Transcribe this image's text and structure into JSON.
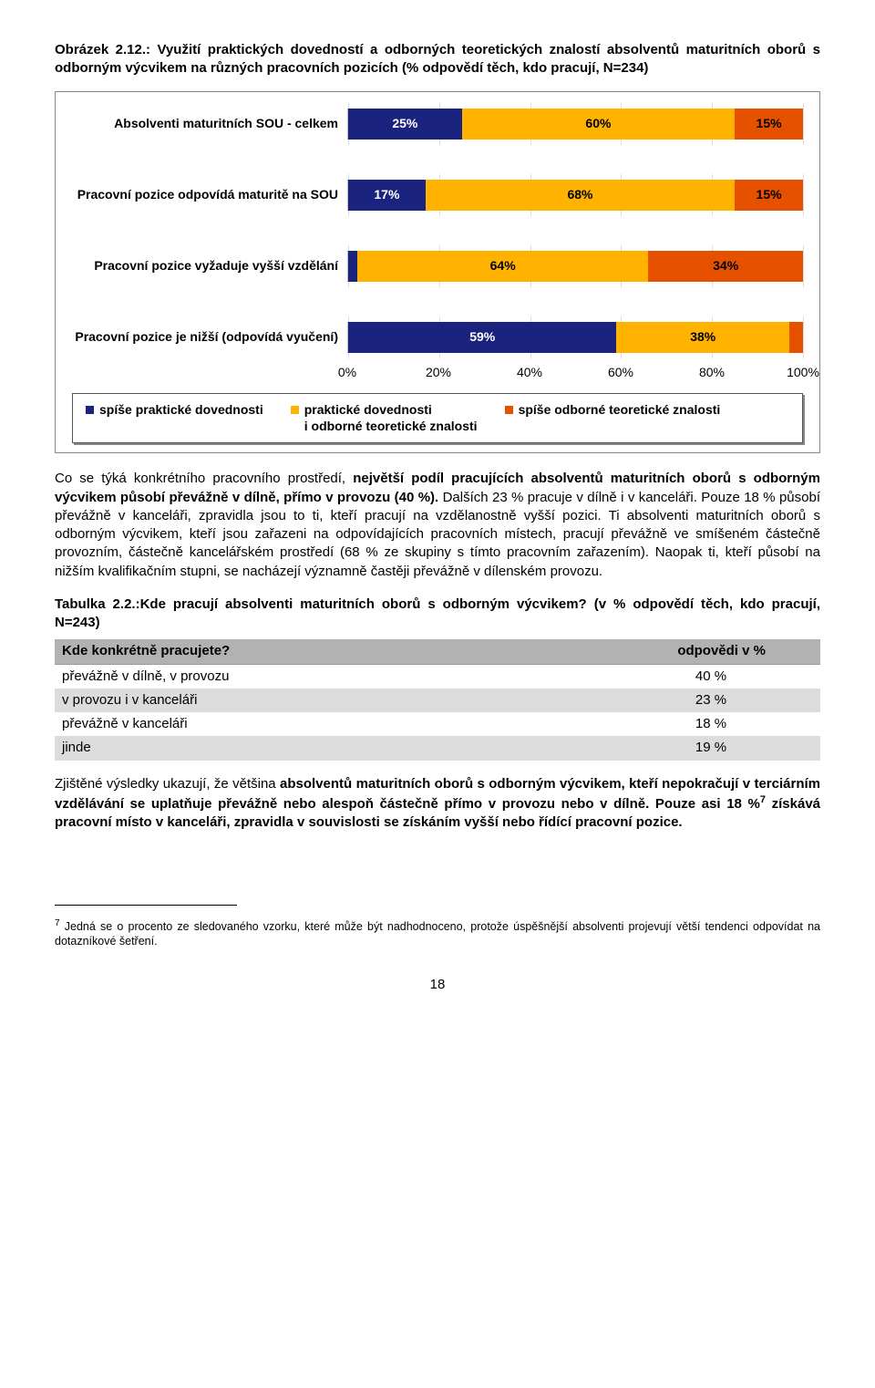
{
  "figure": {
    "label": "Obrázek 2.12.",
    "caption": ": Využití praktických dovedností a odborných teoretických znalostí absolventů maturitních oborů s odborným výcvikem na různých pracovních pozicích (% odpovědí těch, kdo pracují, N=234)"
  },
  "chart": {
    "type": "stacked-bar-horizontal",
    "xlim": [
      0,
      100
    ],
    "xticks": [
      "0%",
      "20%",
      "40%",
      "60%",
      "80%",
      "100%"
    ],
    "xtick_positions_pct": [
      0,
      20,
      40,
      60,
      80,
      100
    ],
    "grid_color": "#dcdcdc",
    "plot_border_color": "#bbbbbb",
    "categories": [
      {
        "label": "Absolventi maturitních SOU - celkem",
        "segments": [
          {
            "value": 25,
            "label": "25%",
            "color": "#1a237e",
            "text_color": "#ffffff"
          },
          {
            "value": 60,
            "label": "60%",
            "color": "#ffb300",
            "text_color": "#000000"
          },
          {
            "value": 15,
            "label": "15%",
            "color": "#e65100",
            "text_color": "#000000"
          }
        ]
      },
      {
        "label": "Pracovní pozice odpovídá maturitě na SOU",
        "segments": [
          {
            "value": 17,
            "label": "17%",
            "color": "#1a237e",
            "text_color": "#ffffff"
          },
          {
            "value": 68,
            "label": "68%",
            "color": "#ffb300",
            "text_color": "#000000"
          },
          {
            "value": 15,
            "label": "15%",
            "color": "#e65100",
            "text_color": "#000000"
          }
        ]
      },
      {
        "label": "Pracovní pozice vyžaduje vyšší vzdělání",
        "segments": [
          {
            "value": 2,
            "label": "",
            "color": "#1a237e",
            "text_color": "#ffffff"
          },
          {
            "value": 64,
            "label": "64%",
            "color": "#ffb300",
            "text_color": "#000000"
          },
          {
            "value": 34,
            "label": "34%",
            "color": "#e65100",
            "text_color": "#000000"
          }
        ]
      },
      {
        "label": "Pracovní pozice je nižší (odpovídá vyučení)",
        "segments": [
          {
            "value": 59,
            "label": "59%",
            "color": "#1a237e",
            "text_color": "#ffffff"
          },
          {
            "value": 38,
            "label": "38%",
            "color": "#ffb300",
            "text_color": "#000000"
          },
          {
            "value": 3,
            "label": "",
            "color": "#e65100",
            "text_color": "#000000"
          }
        ]
      }
    ],
    "legend": [
      {
        "color": "#1a237e",
        "label_lines": [
          "spíše praktické dovednosti"
        ]
      },
      {
        "color": "#ffb300",
        "label_lines": [
          "praktické dovednosti",
          "i odborné teoretické znalosti"
        ]
      },
      {
        "color": "#e65100",
        "label_lines": [
          "spíše odborné teoretické znalosti"
        ]
      }
    ]
  },
  "para1": {
    "pre": "Co se týká konkrétního  pracovního prostředí, ",
    "bold": "největší podíl pracujících absolventů maturitních oborů s odborným výcvikem působí převážně  v dílně, přímo v provozu (40 %).",
    "post": " Dalších 23 % pracuje v dílně i v kanceláři. Pouze 18 % působí převážně v kanceláři, zpravidla jsou to ti, kteří pracují na vzdělanostně vyšší pozici. Ti absolventi maturitních oborů s odborným výcvikem, kteří jsou zařazeni na odpovídajících pracovních místech, pracují převážně ve smíšeném částečně provozním, částečně kancelářském prostředí (68 % ze skupiny s tímto pracovním zařazením). Naopak ti, kteří působí na nižším kvalifikačním stupni, se nacházejí významně častěji  převážně v dílenském  provozu."
  },
  "table_title": "Tabulka 2.2.:Kde pracují absolventi maturitních oborů s odborným výcvikem? (v % odpovědí těch, kdo pracují, N=243)",
  "table": {
    "header_left": "Kde konkrétně pracujete?",
    "header_right": "odpovědi v %",
    "rows": [
      {
        "label": "převážně v dílně, v provozu",
        "value": "40 %",
        "shade": false
      },
      {
        "label": "v provozu i v kanceláři",
        "value": "23 %",
        "shade": true
      },
      {
        "label": "převážně v kanceláři",
        "value": "18 %",
        "shade": false
      },
      {
        "label": "jinde",
        "value": "19 %",
        "shade": true
      }
    ]
  },
  "para2": {
    "pre": "Zjištěné výsledky ukazují, že většina ",
    "bold1": "absolventů maturitních oborů s odborným výcvikem, kteří nepokračují v terciárním vzdělávání se uplatňuje převážně nebo alespoň částečně přímo v provozu nebo v dílně. Pouze asi 18 %",
    "sup": "7",
    "bold2": " získává pracovní místo v kanceláři, zpravidla v souvislosti se získáním vyšší nebo řídící pracovní pozice."
  },
  "footnote": {
    "num": "7",
    "text": " Jedná se o procento ze sledovaného vzorku, které může být nadhodnoceno, protože úspěšnější absolventi projevují větší tendenci odpovídat na dotazníkové šetření."
  },
  "page_number": "18"
}
